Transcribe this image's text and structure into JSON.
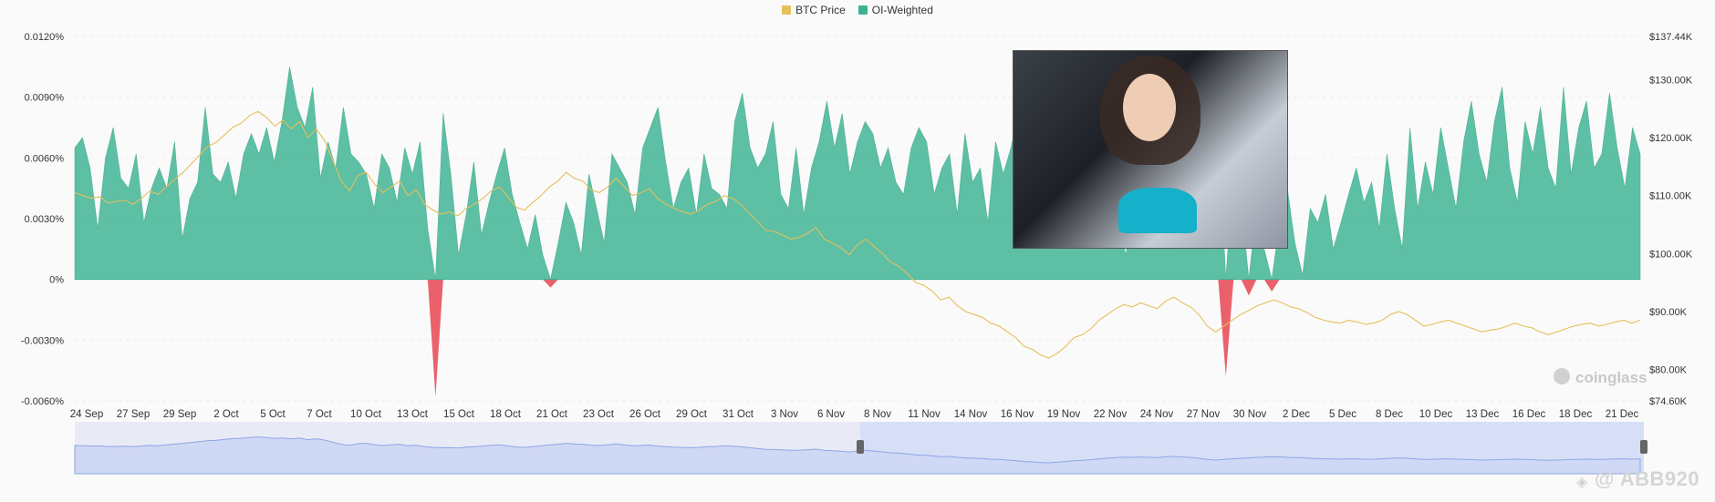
{
  "legend": [
    {
      "label": "BTC Price",
      "color": "#e3c05a"
    },
    {
      "label": "OI-Weighted",
      "color": "#3bb392"
    }
  ],
  "brand": "coinglass",
  "watermark": "@ ABB920",
  "chart_data": {
    "type": "area",
    "left_axis": {
      "ticks": [
        "0.0120%",
        "0.0090%",
        "0.0060%",
        "0.0030%",
        "0%",
        "-0.0030%",
        "-0.0060%"
      ],
      "min": -0.006,
      "max": 0.012
    },
    "right_axis": {
      "ticks": [
        "$137.44K",
        "$130.00K",
        "$120.00K",
        "$110.00K",
        "$100.00K",
        "$90.00K",
        "$80.00K",
        "$74.60K"
      ],
      "min": 74.6,
      "max": 137.44
    },
    "x_ticks": [
      "24 Sep",
      "27 Sep",
      "29 Sep",
      "2 Oct",
      "5 Oct",
      "7 Oct",
      "10 Oct",
      "13 Oct",
      "15 Oct",
      "18 Oct",
      "21 Oct",
      "23 Oct",
      "26 Oct",
      "29 Oct",
      "31 Oct",
      "3 Nov",
      "6 Nov",
      "8 Nov",
      "11 Nov",
      "14 Nov",
      "16 Nov",
      "19 Nov",
      "22 Nov",
      "24 Nov",
      "27 Nov",
      "30 Nov",
      "2 Dec",
      "5 Dec",
      "8 Dec",
      "10 Dec",
      "13 Dec",
      "16 Dec",
      "18 Dec",
      "21 Dec"
    ],
    "series": [
      {
        "name": "OI-Weighted",
        "color": "#3bb392",
        "negative_color": "#e8505b",
        "values": [
          0.0065,
          0.007,
          0.0055,
          0.0025,
          0.006,
          0.0075,
          0.005,
          0.0045,
          0.0062,
          0.0028,
          0.0045,
          0.0055,
          0.0045,
          0.0068,
          0.002,
          0.004,
          0.0048,
          0.0085,
          0.0052,
          0.0048,
          0.0058,
          0.004,
          0.0062,
          0.0072,
          0.0062,
          0.0075,
          0.0058,
          0.0078,
          0.0105,
          0.0085,
          0.0075,
          0.0095,
          0.005,
          0.0068,
          0.0055,
          0.0085,
          0.0062,
          0.0058,
          0.0052,
          0.0035,
          0.0062,
          0.0055,
          0.0038,
          0.0065,
          0.0052,
          0.0068,
          0.0025,
          -0.0058,
          0.0082,
          0.0052,
          0.0012,
          0.0032,
          0.0058,
          0.0022,
          0.0038,
          0.0052,
          0.0065,
          0.0042,
          0.0028,
          0.0015,
          0.0032,
          0.0012,
          -0.0004,
          0.0018,
          0.0038,
          0.0028,
          0.0012,
          0.0052,
          0.0035,
          0.0018,
          0.0062,
          0.0055,
          0.0048,
          0.0032,
          0.0065,
          0.0075,
          0.0085,
          0.0058,
          0.0035,
          0.0048,
          0.0055,
          0.0032,
          0.0062,
          0.0045,
          0.0042,
          0.0035,
          0.0078,
          0.0092,
          0.0065,
          0.0055,
          0.0062,
          0.0078,
          0.0042,
          0.0035,
          0.0065,
          0.0032,
          0.0055,
          0.0068,
          0.0088,
          0.0065,
          0.0082,
          0.0052,
          0.0068,
          0.0078,
          0.0072,
          0.0055,
          0.0065,
          0.0048,
          0.0042,
          0.0065,
          0.0075,
          0.0068,
          0.0042,
          0.0055,
          0.0062,
          0.0032,
          0.0072,
          0.0048,
          0.0055,
          0.0028,
          0.0068,
          0.0052,
          0.0065,
          0.0083,
          0.0072,
          0.0045,
          0.0078,
          0.0055,
          0.0062,
          0.0075,
          0.0062,
          0.0052,
          0.0045,
          0.0035,
          0.0052,
          0.0042,
          0.0025,
          0.0012,
          0.0048,
          0.0038,
          0.0055,
          0.0042,
          0.0058,
          0.0068,
          0.0075,
          0.0045,
          0.0062,
          0.0035,
          0.0058,
          0.0072,
          -0.0048,
          0.0055,
          0.0038,
          -0.0008,
          0.0035,
          0.0015,
          -0.0006,
          0.0028,
          0.0045,
          0.0018,
          0.0002,
          0.0035,
          0.0028,
          0.0042,
          0.0015,
          0.0028,
          0.0042,
          0.0055,
          0.0038,
          0.0048,
          0.0025,
          0.0062,
          0.0035,
          0.0015,
          0.0075,
          0.0035,
          0.0058,
          0.0042,
          0.0075,
          0.0055,
          0.0035,
          0.0068,
          0.0088,
          0.0062,
          0.0048,
          0.0078,
          0.0095,
          0.0055,
          0.0038,
          0.0078,
          0.0062,
          0.0085,
          0.0055,
          0.0045,
          0.0095,
          0.0052,
          0.0075,
          0.0088,
          0.0055,
          0.0062,
          0.0092,
          0.0065,
          0.0045,
          0.0075,
          0.0062
        ]
      },
      {
        "name": "BTC Price",
        "color": "#e3c05a",
        "values": [
          110.5,
          110.0,
          109.5,
          109.8,
          108.7,
          109.0,
          109.2,
          108.5,
          109.5,
          110.8,
          110.2,
          111.5,
          112.8,
          114.0,
          115.5,
          117.0,
          118.5,
          119.2,
          120.5,
          121.8,
          122.5,
          123.8,
          124.5,
          123.5,
          122.0,
          123.0,
          121.5,
          122.8,
          120.0,
          121.5,
          119.5,
          116.0,
          112.5,
          110.8,
          113.5,
          114.0,
          112.0,
          110.5,
          111.5,
          112.5,
          110.0,
          111.0,
          108.5,
          107.5,
          106.8,
          107.2,
          106.5,
          107.8,
          108.5,
          109.5,
          110.8,
          111.5,
          109.8,
          108.0,
          107.5,
          108.8,
          110.0,
          111.5,
          112.5,
          114.0,
          113.0,
          112.5,
          111.0,
          110.5,
          111.5,
          113.0,
          111.5,
          110.0,
          110.5,
          111.2,
          109.5,
          108.5,
          107.8,
          107.2,
          106.8,
          107.5,
          108.5,
          109.0,
          110.0,
          109.5,
          108.5,
          107.0,
          105.5,
          104.0,
          103.8,
          103.2,
          102.5,
          102.8,
          103.5,
          104.5,
          102.5,
          101.8,
          101.0,
          99.8,
          101.5,
          102.5,
          101.2,
          100.0,
          98.5,
          97.8,
          96.5,
          95.0,
          94.5,
          93.5,
          92.0,
          92.5,
          91.0,
          90.0,
          89.5,
          89.0,
          88.0,
          87.5,
          86.5,
          85.5,
          84.0,
          83.5,
          82.5,
          82.0,
          82.8,
          84.0,
          85.5,
          86.0,
          87.0,
          88.5,
          89.5,
          90.5,
          91.2,
          90.8,
          91.5,
          91.0,
          90.5,
          91.8,
          92.5,
          91.5,
          90.8,
          89.5,
          87.5,
          86.5,
          87.5,
          88.5,
          89.5,
          90.2,
          91.0,
          91.5,
          92.0,
          91.5,
          90.8,
          90.5,
          89.8,
          89.0,
          88.5,
          88.2,
          88.0,
          88.5,
          88.2,
          87.8,
          88.0,
          88.5,
          89.5,
          90.0,
          89.5,
          88.5,
          87.5,
          87.8,
          88.2,
          88.5,
          88.0,
          87.5,
          87.0,
          86.5,
          86.8,
          87.0,
          87.5,
          88.0,
          87.5,
          87.2,
          86.5,
          86.0,
          86.5,
          87.0,
          87.5,
          87.8,
          88.0,
          87.5,
          87.8,
          88.2,
          88.5,
          88.0,
          88.5
        ]
      }
    ],
    "grid": true,
    "legend_position": "top-center"
  }
}
